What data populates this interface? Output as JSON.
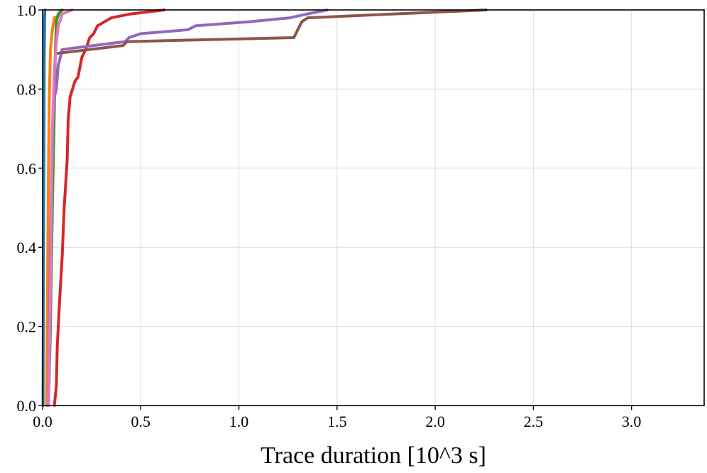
{
  "chart_data": {
    "type": "line",
    "title": "",
    "xlabel": "Trace duration [10^3 s]",
    "ylabel": "",
    "xlim": [
      0,
      3.37
    ],
    "ylim": [
      0,
      1.0
    ],
    "grid": true,
    "xticks": [
      0.0,
      0.5,
      1.0,
      1.5,
      2.0,
      2.5,
      3.0
    ],
    "xtick_labels": [
      "0.0",
      "0.5",
      "1.0",
      "1.5",
      "2.0",
      "2.5",
      "3.0"
    ],
    "yticks": [
      0.0,
      0.2,
      0.4,
      0.6,
      0.8,
      1.0
    ],
    "ytick_labels": [
      "0.0",
      "0.2",
      "0.4",
      "0.6",
      "0.8",
      "1.0"
    ],
    "series": [
      {
        "name": "series-blue",
        "color": "#1f77b4",
        "points": [
          [
            0.002,
            0.0
          ],
          [
            0.004,
            0.3
          ],
          [
            0.006,
            0.6
          ],
          [
            0.008,
            0.85
          ],
          [
            0.01,
            0.97
          ],
          [
            0.012,
            1.0
          ]
        ]
      },
      {
        "name": "series-orange",
        "color": "#ff7f0e",
        "points": [
          [
            0.02,
            0.0
          ],
          [
            0.025,
            0.3
          ],
          [
            0.03,
            0.6
          ],
          [
            0.035,
            0.8
          ],
          [
            0.04,
            0.9
          ],
          [
            0.05,
            0.95
          ],
          [
            0.06,
            0.98
          ],
          [
            0.1,
            0.99
          ],
          [
            0.15,
            1.0
          ]
        ]
      },
      {
        "name": "series-green",
        "color": "#2ca02c",
        "points": [
          [
            0.03,
            0.0
          ],
          [
            0.035,
            0.1
          ],
          [
            0.04,
            0.2
          ],
          [
            0.045,
            0.35
          ],
          [
            0.05,
            0.5
          ],
          [
            0.06,
            0.75
          ],
          [
            0.065,
            0.9
          ],
          [
            0.07,
            0.97
          ],
          [
            0.08,
            0.99
          ],
          [
            0.1,
            1.0
          ]
        ]
      },
      {
        "name": "series-red",
        "color": "#d62728",
        "points": [
          [
            0.06,
            0.0
          ],
          [
            0.07,
            0.05
          ],
          [
            0.075,
            0.15
          ],
          [
            0.085,
            0.25
          ],
          [
            0.1,
            0.38
          ],
          [
            0.11,
            0.5
          ],
          [
            0.125,
            0.62
          ],
          [
            0.13,
            0.72
          ],
          [
            0.14,
            0.78
          ],
          [
            0.165,
            0.82
          ],
          [
            0.18,
            0.83
          ],
          [
            0.2,
            0.88
          ],
          [
            0.22,
            0.9
          ],
          [
            0.24,
            0.93
          ],
          [
            0.26,
            0.94
          ],
          [
            0.28,
            0.96
          ],
          [
            0.35,
            0.98
          ],
          [
            0.45,
            0.99
          ],
          [
            0.62,
            1.0
          ]
        ]
      },
      {
        "name": "series-purple",
        "color": "#9467bd",
        "points": [
          [
            0.03,
            0.0
          ],
          [
            0.04,
            0.4
          ],
          [
            0.05,
            0.7
          ],
          [
            0.06,
            0.78
          ],
          [
            0.07,
            0.8
          ],
          [
            0.08,
            0.86
          ],
          [
            0.1,
            0.9
          ],
          [
            0.42,
            0.92
          ],
          [
            0.44,
            0.93
          ],
          [
            0.5,
            0.94
          ],
          [
            0.74,
            0.95
          ],
          [
            0.78,
            0.96
          ],
          [
            1.05,
            0.97
          ],
          [
            1.26,
            0.98
          ],
          [
            1.35,
            0.99
          ],
          [
            1.45,
            1.0
          ]
        ]
      },
      {
        "name": "series-brown",
        "color": "#8c564b",
        "points": [
          [
            0.07,
            0.89
          ],
          [
            0.41,
            0.91
          ],
          [
            0.43,
            0.92
          ],
          [
            1.28,
            0.93
          ],
          [
            1.32,
            0.97
          ],
          [
            1.35,
            0.98
          ],
          [
            2.26,
            1.0
          ]
        ]
      },
      {
        "name": "series-pink",
        "color": "#e377c2",
        "points": [
          [
            0.03,
            0.0
          ],
          [
            0.04,
            0.3
          ],
          [
            0.05,
            0.7
          ],
          [
            0.06,
            0.85
          ],
          [
            0.07,
            0.92
          ],
          [
            0.08,
            0.96
          ],
          [
            0.1,
            0.99
          ],
          [
            0.15,
            1.0
          ]
        ]
      }
    ]
  }
}
